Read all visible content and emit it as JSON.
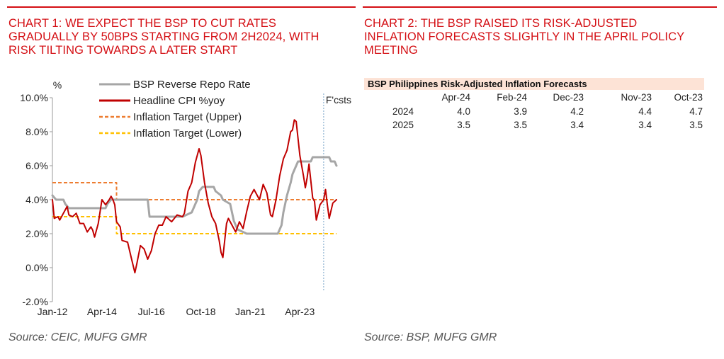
{
  "left_panel": {
    "title": "CHART 1: WE EXPECT THE BSP TO CUT RATES\nGRADUALLY BY 50BPS STARTING FROM 2H2024, WITH\nRISK TILTING TOWARDS A LATER START",
    "source": "Source: CEIC, MUFG GMR"
  },
  "right_panel": {
    "title": "CHART 2: THE BSP RAISED ITS RISK-ADJUSTED\nINFLATION FORECASTS SLIGHTLY IN THE APRIL POLICY\nMEETING",
    "source": "Source: BSP, MUFG GMR"
  },
  "colors": {
    "accent_red": "#d40f14",
    "repo_grey": "#a6a6a6",
    "cpi_red": "#c00000",
    "target_upper": "#ed7d31",
    "target_lower": "#ffc000",
    "table_header_bg": "#fde3d6"
  },
  "chart_data": [
    {
      "type": "line",
      "unit_label": "%",
      "ylim": [
        -2.0,
        10.0
      ],
      "y_ticks": [
        "-2.0%",
        "0.0%",
        "2.0%",
        "4.0%",
        "6.0%",
        "8.0%",
        "10.0%"
      ],
      "y_tick_values": [
        -2,
        0,
        2,
        4,
        6,
        8,
        10
      ],
      "x_range": [
        "2012-01",
        "2024-12"
      ],
      "x_ticks": [
        "Jan-12",
        "Apr-14",
        "Jul-16",
        "Oct-18",
        "Jan-21",
        "Apr-23"
      ],
      "forecast_label": "F'csts",
      "forecast_start": "2024-05",
      "grid": false,
      "legend_position": "top",
      "series": [
        {
          "name": "BSP Reverse Repo Rate",
          "color": "#a6a6a6",
          "style": "solid",
          "points": [
            [
              "2012-01",
              4.25
            ],
            [
              "2012-03",
              4.0
            ],
            [
              "2012-07",
              4.0
            ],
            [
              "2012-08",
              3.75
            ],
            [
              "2012-10",
              3.5
            ],
            [
              "2014-06",
              3.5
            ],
            [
              "2014-07",
              3.75
            ],
            [
              "2014-09",
              4.0
            ],
            [
              "2016-05",
              4.0
            ],
            [
              "2016-06",
              3.0
            ],
            [
              "2017-12",
              3.0
            ],
            [
              "2018-05",
              3.25
            ],
            [
              "2018-06",
              3.5
            ],
            [
              "2018-08",
              4.0
            ],
            [
              "2018-09",
              4.5
            ],
            [
              "2018-11",
              4.75
            ],
            [
              "2019-05",
              4.75
            ],
            [
              "2019-06",
              4.5
            ],
            [
              "2019-09",
              4.25
            ],
            [
              "2019-10",
              4.0
            ],
            [
              "2020-02",
              3.75
            ],
            [
              "2020-03",
              3.25
            ],
            [
              "2020-04",
              2.75
            ],
            [
              "2020-06",
              2.25
            ],
            [
              "2020-11",
              2.0
            ],
            [
              "2022-04",
              2.0
            ],
            [
              "2022-05",
              2.25
            ],
            [
              "2022-06",
              2.5
            ],
            [
              "2022-07",
              3.25
            ],
            [
              "2022-09",
              4.25
            ],
            [
              "2022-11",
              5.0
            ],
            [
              "2022-12",
              5.5
            ],
            [
              "2023-02",
              6.0
            ],
            [
              "2023-03",
              6.25
            ],
            [
              "2023-10",
              6.25
            ],
            [
              "2023-11",
              6.5
            ],
            [
              "2024-08",
              6.5
            ],
            [
              "2024-09",
              6.25
            ],
            [
              "2024-11",
              6.25
            ],
            [
              "2024-12",
              6.0
            ]
          ]
        },
        {
          "name": "Headline CPI %yoy",
          "color": "#c00000",
          "style": "solid",
          "points": [
            [
              "2012-01",
              4.0
            ],
            [
              "2012-02",
              2.9
            ],
            [
              "2012-04",
              3.0
            ],
            [
              "2012-05",
              2.8
            ],
            [
              "2012-07",
              3.2
            ],
            [
              "2012-09",
              3.6
            ],
            [
              "2012-10",
              3.1
            ],
            [
              "2012-12",
              3.0
            ],
            [
              "2013-02",
              3.2
            ],
            [
              "2013-04",
              2.6
            ],
            [
              "2013-06",
              2.6
            ],
            [
              "2013-08",
              2.1
            ],
            [
              "2013-10",
              2.4
            ],
            [
              "2013-11",
              2.2
            ],
            [
              "2013-12",
              1.8
            ],
            [
              "2014-02",
              2.6
            ],
            [
              "2014-04",
              4.0
            ],
            [
              "2014-06",
              3.7
            ],
            [
              "2014-08",
              4.0
            ],
            [
              "2014-09",
              4.2
            ],
            [
              "2014-10",
              4.0
            ],
            [
              "2014-11",
              3.7
            ],
            [
              "2014-12",
              2.7
            ],
            [
              "2015-02",
              2.4
            ],
            [
              "2015-03",
              1.6
            ],
            [
              "2015-06",
              1.5
            ],
            [
              "2015-08",
              0.6
            ],
            [
              "2015-10",
              -0.3
            ],
            [
              "2015-11",
              0.2
            ],
            [
              "2016-01",
              1.3
            ],
            [
              "2016-03",
              1.1
            ],
            [
              "2016-05",
              0.5
            ],
            [
              "2016-07",
              1.0
            ],
            [
              "2016-09",
              2.0
            ],
            [
              "2016-11",
              2.5
            ],
            [
              "2017-01",
              2.5
            ],
            [
              "2017-03",
              3.0
            ],
            [
              "2017-06",
              2.7
            ],
            [
              "2017-09",
              3.1
            ],
            [
              "2017-12",
              3.0
            ],
            [
              "2018-01",
              3.2
            ],
            [
              "2018-03",
              4.5
            ],
            [
              "2018-05",
              5.0
            ],
            [
              "2018-07",
              6.2
            ],
            [
              "2018-09",
              7.0
            ],
            [
              "2018-10",
              6.6
            ],
            [
              "2018-12",
              5.0
            ],
            [
              "2019-02",
              3.8
            ],
            [
              "2019-04",
              3.0
            ],
            [
              "2019-06",
              2.6
            ],
            [
              "2019-08",
              1.6
            ],
            [
              "2019-09",
              0.9
            ],
            [
              "2019-10",
              0.6
            ],
            [
              "2019-12",
              2.6
            ],
            [
              "2020-01",
              2.9
            ],
            [
              "2020-03",
              2.5
            ],
            [
              "2020-05",
              2.1
            ],
            [
              "2020-07",
              2.7
            ],
            [
              "2020-09",
              2.3
            ],
            [
              "2020-11",
              3.3
            ],
            [
              "2021-01",
              4.2
            ],
            [
              "2021-03",
              4.6
            ],
            [
              "2021-06",
              4.0
            ],
            [
              "2021-08",
              4.9
            ],
            [
              "2021-10",
              4.4
            ],
            [
              "2021-12",
              3.1
            ],
            [
              "2022-01",
              3.0
            ],
            [
              "2022-03",
              4.0
            ],
            [
              "2022-05",
              5.4
            ],
            [
              "2022-07",
              6.4
            ],
            [
              "2022-09",
              6.9
            ],
            [
              "2022-11",
              8.0
            ],
            [
              "2022-12",
              8.1
            ],
            [
              "2023-01",
              8.7
            ],
            [
              "2023-02",
              8.6
            ],
            [
              "2023-04",
              6.6
            ],
            [
              "2023-06",
              5.4
            ],
            [
              "2023-07",
              4.7
            ],
            [
              "2023-08",
              5.3
            ],
            [
              "2023-09",
              6.1
            ],
            [
              "2023-11",
              4.1
            ],
            [
              "2023-12",
              3.9
            ],
            [
              "2024-01",
              2.8
            ],
            [
              "2024-03",
              3.7
            ],
            [
              "2024-05",
              4.0
            ],
            [
              "2024-06",
              4.6
            ],
            [
              "2024-07",
              3.7
            ],
            [
              "2024-08",
              2.9
            ],
            [
              "2024-10",
              3.8
            ],
            [
              "2024-12",
              4.0
            ]
          ]
        },
        {
          "name": "Inflation Target (Upper)",
          "color": "#ed7d31",
          "style": "dashed",
          "points": [
            [
              "2012-01",
              5.0
            ],
            [
              "2014-12",
              5.0
            ],
            [
              "2014-12",
              4.0
            ],
            [
              "2024-12",
              4.0
            ]
          ]
        },
        {
          "name": "Inflation Target (Lower)",
          "color": "#ffc000",
          "style": "dashed",
          "points": [
            [
              "2012-01",
              3.0
            ],
            [
              "2014-12",
              3.0
            ],
            [
              "2014-12",
              2.0
            ],
            [
              "2024-12",
              2.0
            ]
          ]
        }
      ]
    },
    {
      "type": "table",
      "title": "BSP Philippines Risk-Adjusted Inflation Forecasts",
      "columns": [
        "",
        "Apr-24",
        "Feb-24",
        "Dec-23",
        "Nov-23",
        "Oct-23"
      ],
      "rows": [
        [
          "2024",
          "4.0",
          "3.9",
          "4.2",
          "4.4",
          "4.7"
        ],
        [
          "2025",
          "3.5",
          "3.5",
          "3.4",
          "3.4",
          "3.5"
        ]
      ]
    }
  ]
}
